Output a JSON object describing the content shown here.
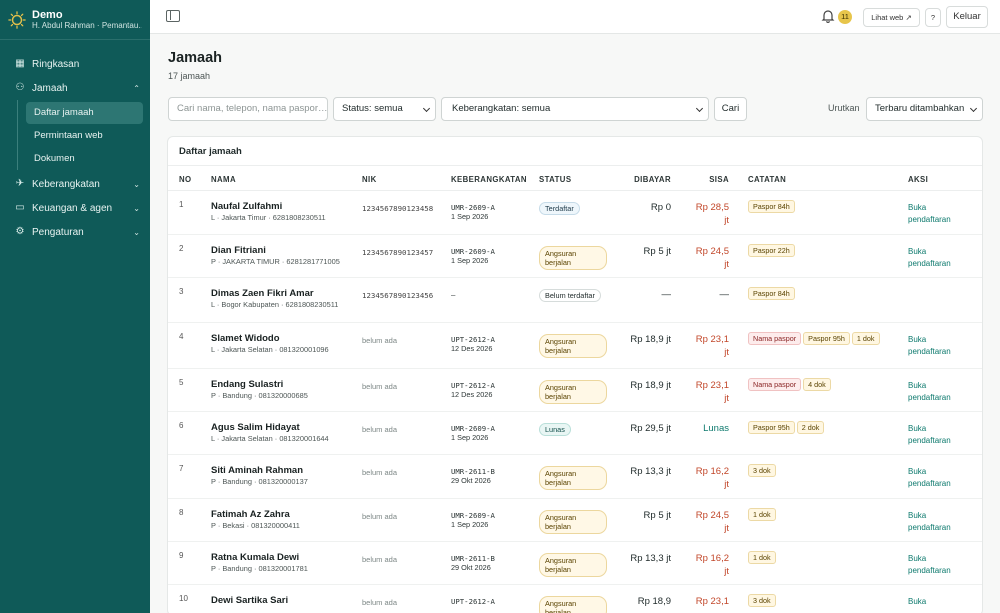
{
  "sidebar": {
    "brand_title": "Demo",
    "brand_subtitle": "H. Abdul Rahman · Pemantau…",
    "items": [
      {
        "label": "Ringkasan",
        "icon": "grid-icon"
      },
      {
        "label": "Jamaah",
        "icon": "users-icon"
      },
      {
        "label": "Keberangkatan",
        "icon": "plane-icon"
      },
      {
        "label": "Keuangan & agen",
        "icon": "wallet-icon"
      },
      {
        "label": "Pengaturan",
        "icon": "gear-icon"
      }
    ],
    "jamaah_sub": [
      "Daftar jamaah",
      "Permintaan web",
      "Dokumen"
    ]
  },
  "topbar": {
    "notif_count": "11",
    "view_web": "Lihat web ↗",
    "help": "?",
    "logout": "Keluar"
  },
  "page": {
    "title": "Jamaah",
    "subtitle": "17 jamaah"
  },
  "filters": {
    "search_placeholder": "Cari nama, telepon, nama paspor…",
    "status": "Status: semua",
    "departure": "Keberangkatan: semua",
    "search_button": "Cari",
    "sort_label": "Urutkan",
    "sort_value": "Terbaru ditambahkan"
  },
  "table": {
    "title": "Daftar jamaah",
    "headers": {
      "no": "NO",
      "name": "NAMA",
      "nik": "NIK",
      "departure": "KEBERANGKATAN",
      "status": "STATUS",
      "paid": "DIBAYAR",
      "remaining": "SISA",
      "notes": "CATATAN",
      "action": "AKSI"
    },
    "rows": [
      {
        "no": "1",
        "name": "Naufal Zulfahmi",
        "sub": "L · Jakarta Timur · 6281808230511",
        "nik": "1234567890123458",
        "dep_code": "UMR-2609-A",
        "dep_date": "1 Sep 2026",
        "status": "Terdaftar",
        "paid": "Rp 0",
        "remaining": "Rp 28,5 jt",
        "notes": [
          "Paspor 84h"
        ],
        "action": "Buka pendaftaran"
      },
      {
        "no": "2",
        "name": "Dian Fitriani",
        "sub": "P · JAKARTA TIMUR · 6281281771005",
        "nik": "1234567890123457",
        "dep_code": "UMR-2609-A",
        "dep_date": "1 Sep 2026",
        "status": "Angsuran berjalan",
        "paid": "Rp 5 jt",
        "remaining": "Rp 24,5 jt",
        "notes": [
          "Paspor 22h"
        ],
        "action": "Buka pendaftaran"
      },
      {
        "no": "3",
        "name": "Dimas Zaen Fikri Amar",
        "sub": "L · Bogor Kabupaten · 6281808230511",
        "nik": "1234567890123456",
        "dep_code": "—",
        "dep_date": "",
        "status": "Belum terdaftar",
        "paid": "—",
        "remaining": "—",
        "notes": [
          "Paspor 84h"
        ],
        "action": ""
      },
      {
        "no": "4",
        "name": "Slamet Widodo",
        "sub": "L · Jakarta Selatan · 081320001096",
        "nik": "belum ada",
        "dep_code": "UPT-2612-A",
        "dep_date": "12 Des 2026",
        "status": "Angsuran berjalan",
        "paid": "Rp 18,9 jt",
        "remaining": "Rp 23,1 jt",
        "notes": [
          "Nama paspor",
          "Paspor 95h",
          "1 dok"
        ],
        "action": "Buka pendaftaran"
      },
      {
        "no": "5",
        "name": "Endang Sulastri",
        "sub": "P · Bandung · 081320000685",
        "nik": "belum ada",
        "dep_code": "UPT-2612-A",
        "dep_date": "12 Des 2026",
        "status": "Angsuran berjalan",
        "paid": "Rp 18,9 jt",
        "remaining": "Rp 23,1 jt",
        "notes": [
          "Nama paspor",
          "4 dok"
        ],
        "action": "Buka pendaftaran"
      },
      {
        "no": "6",
        "name": "Agus Salim Hidayat",
        "sub": "L · Jakarta Selatan · 081320001644",
        "nik": "belum ada",
        "dep_code": "UMR-2609-A",
        "dep_date": "1 Sep 2026",
        "status": "Lunas",
        "paid": "Rp 29,5 jt",
        "remaining": "Lunas",
        "notes": [
          "Paspor 95h",
          "2 dok"
        ],
        "action": "Buka pendaftaran"
      },
      {
        "no": "7",
        "name": "Siti Aminah Rahman",
        "sub": "P · Bandung · 081320000137",
        "nik": "belum ada",
        "dep_code": "UMR-2611-B",
        "dep_date": "29 Okt 2026",
        "status": "Angsuran berjalan",
        "paid": "Rp 13,3 jt",
        "remaining": "Rp 16,2 jt",
        "notes": [
          "3 dok"
        ],
        "action": "Buka pendaftaran"
      },
      {
        "no": "8",
        "name": "Fatimah Az Zahra",
        "sub": "P · Bekasi · 081320000411",
        "nik": "belum ada",
        "dep_code": "UMR-2609-A",
        "dep_date": "1 Sep 2026",
        "status": "Angsuran berjalan",
        "paid": "Rp 5 jt",
        "remaining": "Rp 24,5 jt",
        "notes": [
          "1 dok"
        ],
        "action": "Buka pendaftaran"
      },
      {
        "no": "9",
        "name": "Ratna Kumala Dewi",
        "sub": "P · Bandung · 081320001781",
        "nik": "belum ada",
        "dep_code": "UMR-2611-B",
        "dep_date": "29 Okt 2026",
        "status": "Angsuran berjalan",
        "paid": "Rp 13,3 jt",
        "remaining": "Rp 16,2 jt",
        "notes": [
          "1 dok"
        ],
        "action": "Buka pendaftaran"
      },
      {
        "no": "10",
        "name": "Dewi Sartika Sari",
        "sub": "",
        "nik": "belum ada",
        "dep_code": "UPT-2612-A",
        "dep_date": "",
        "status": "Angsuran berjalan",
        "paid": "Rp 18,9",
        "remaining": "Rp 23,1",
        "notes": [
          "3 dok"
        ],
        "action": "Buka"
      }
    ]
  }
}
